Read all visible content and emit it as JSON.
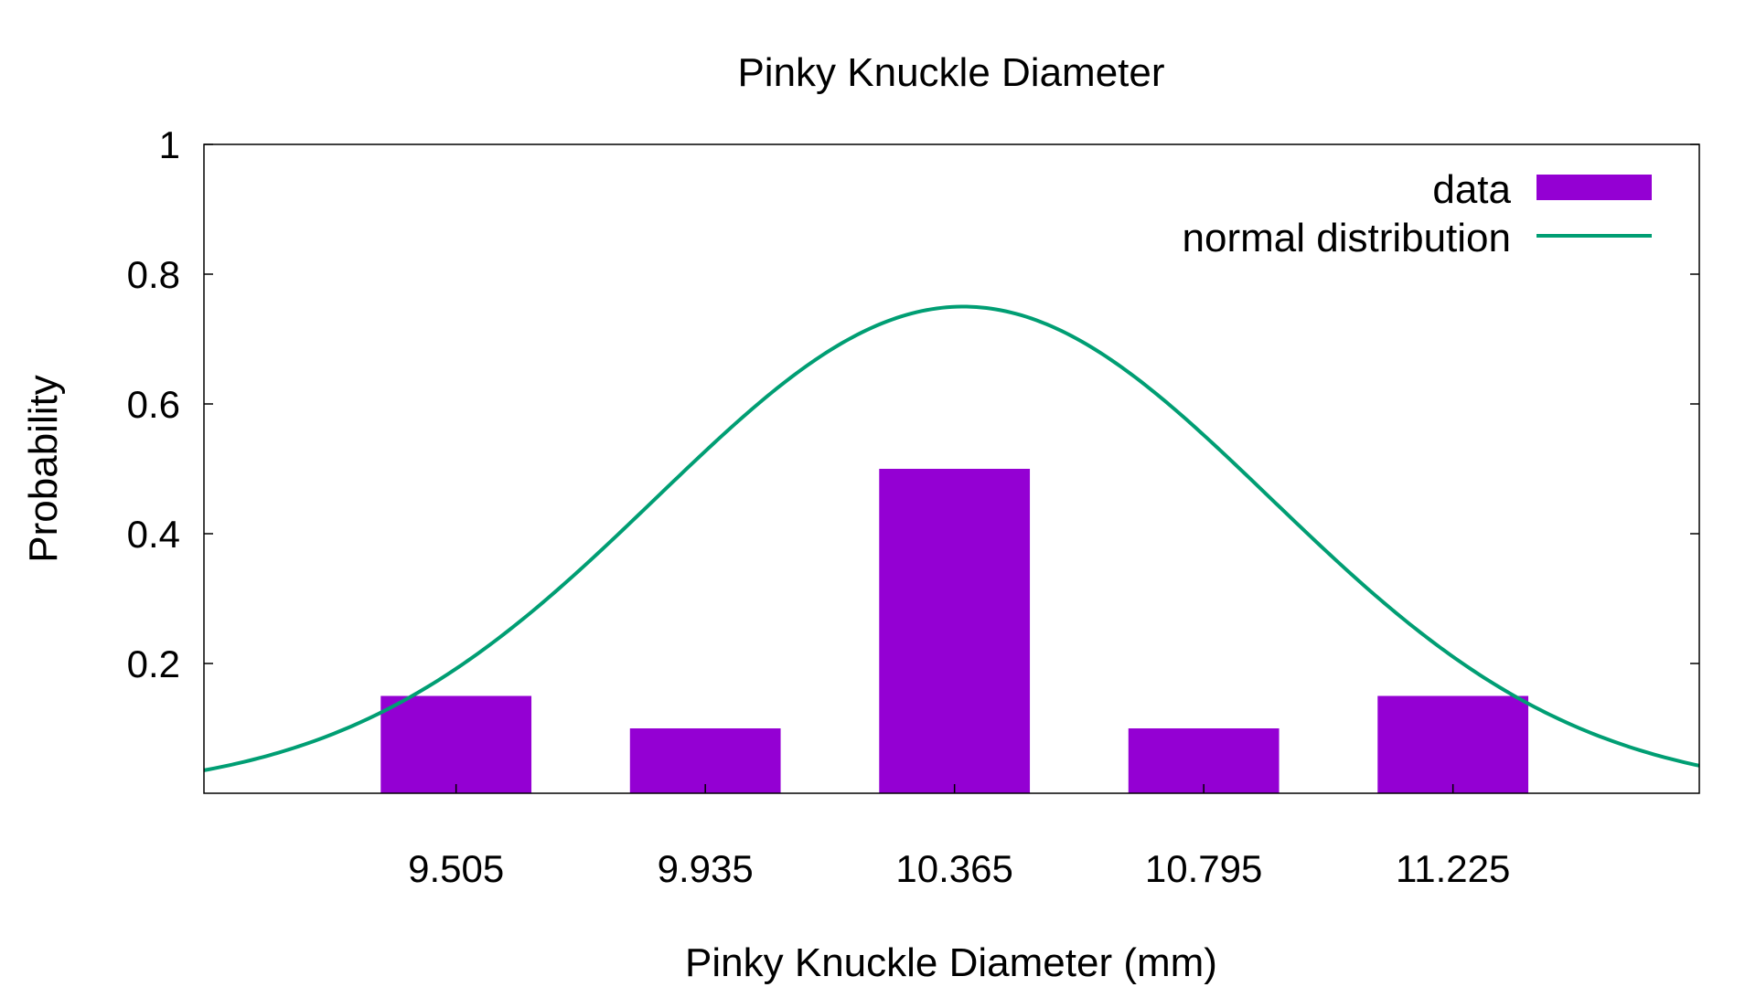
{
  "chart_data": {
    "type": "bar",
    "title": "Pinky Knuckle Diameter",
    "xlabel": "Pinky Knuckle Diameter (mm)",
    "ylabel": "Probability",
    "categories": [
      "9.505",
      "9.935",
      "10.365",
      "10.795",
      "11.225"
    ],
    "x": [
      9.505,
      9.935,
      10.365,
      10.795,
      11.225
    ],
    "bin_width": 0.26,
    "series": [
      {
        "name": "data",
        "type": "bar",
        "color": "#9400d3",
        "values": [
          0.15,
          0.1,
          0.5,
          0.1,
          0.15
        ]
      },
      {
        "name": "normal distribution",
        "type": "line",
        "color": "#009e73",
        "mean": 10.38,
        "std": 0.53,
        "peak": 0.75
      }
    ],
    "xlim": [
      9.07,
      11.65
    ],
    "ylim": [
      0,
      1
    ],
    "yticks": [
      {
        "value": 0.2,
        "label": "0.2"
      },
      {
        "value": 0.4,
        "label": "0.4"
      },
      {
        "value": 0.6,
        "label": "0.6"
      },
      {
        "value": 0.8,
        "label": "0.8"
      },
      {
        "value": 1,
        "label": "1"
      }
    ],
    "grid": false,
    "legend": "top-right"
  }
}
